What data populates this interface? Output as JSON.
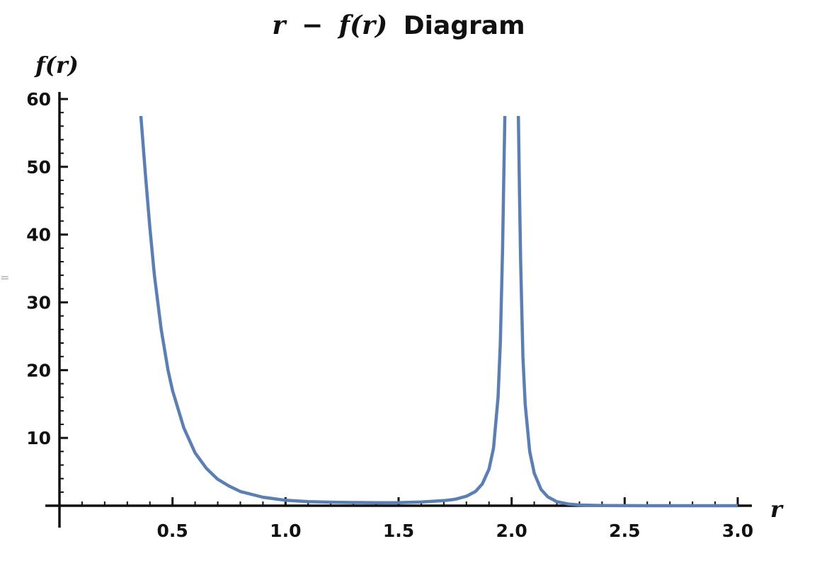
{
  "chart_data": {
    "type": "line",
    "title": {
      "var": "r",
      "dash": "−",
      "func": "f(r)",
      "text": "Diagram"
    },
    "xlabel": "r",
    "ylabel": "f(r)",
    "xlim": [
      0,
      3.0
    ],
    "ylim": [
      0,
      60
    ],
    "x_ticks": [
      "0.5",
      "1.0",
      "1.5",
      "2.0",
      "2.5",
      "3.0"
    ],
    "y_ticks": [
      "10",
      "20",
      "30",
      "40",
      "50",
      "60"
    ],
    "grid": false,
    "series": [
      {
        "color": "#5b7fb3",
        "segments": [
          {
            "x": [
              0.36,
              0.38,
              0.4,
              0.42,
              0.45,
              0.48,
              0.5,
              0.55,
              0.6,
              0.65,
              0.7,
              0.75,
              0.8,
              0.9,
              1.0,
              1.1,
              1.2,
              1.3,
              1.4,
              1.5,
              1.6,
              1.7,
              1.75,
              1.8,
              1.84,
              1.87,
              1.9,
              1.92,
              1.94,
              1.95,
              1.96,
              1.965,
              1.97
            ],
            "y": [
              57.5,
              49,
              41,
              34,
              26,
              20,
              17,
              11.5,
              7.8,
              5.5,
              3.9,
              2.9,
              2.1,
              1.25,
              0.8,
              0.6,
              0.52,
              0.47,
              0.45,
              0.46,
              0.55,
              0.75,
              0.95,
              1.4,
              2.1,
              3.2,
              5.4,
              8.5,
              16,
              24,
              38,
              48,
              57.5
            ]
          },
          {
            "x": [
              2.03,
              2.035,
              2.04,
              2.05,
              2.06,
              2.08,
              2.1,
              2.13,
              2.16,
              2.2,
              2.25,
              2.3,
              2.4,
              2.5,
              2.6,
              2.8,
              3.0
            ],
            "y": [
              57.5,
              46,
              36,
              22,
              15,
              8,
              4.8,
              2.4,
              1.3,
              0.6,
              0.25,
              0.1,
              0.03,
              0.01,
              0,
              0,
              0
            ]
          }
        ]
      }
    ]
  },
  "side_mark": "="
}
